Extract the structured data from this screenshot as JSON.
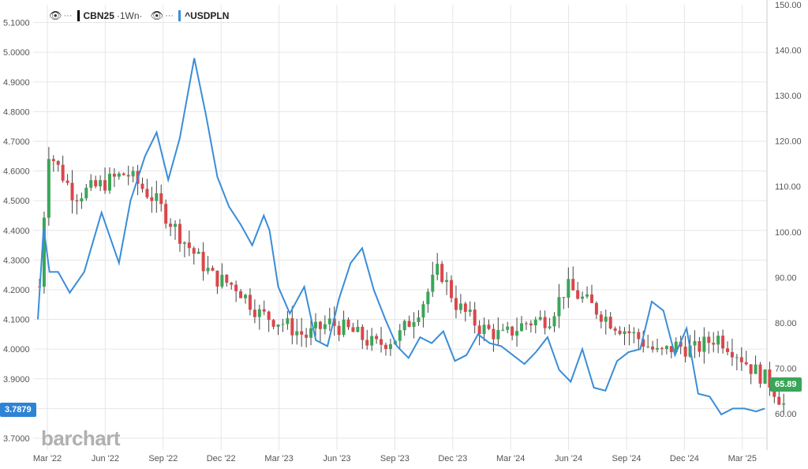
{
  "legend": {
    "primary_symbol": "CBN25",
    "primary_interval": "·1Wn·",
    "secondary_symbol": "^USDPLN",
    "more_label": "···"
  },
  "watermark": "barchart",
  "colors": {
    "up": "#3aa657",
    "down": "#d9474b",
    "line": "#3a8dd8",
    "left_tag": "#2d83d6",
    "right_tag": "#3aa657",
    "grid": "#e6e6e6"
  },
  "left_last_value": "3.7879",
  "right_last_value": "65.89",
  "chart_data": {
    "type": "line",
    "x_ticks": [
      "Mar '22",
      "Jun '22",
      "Sep '22",
      "Dec '22",
      "Mar '23",
      "Jun '23",
      "Sep '23",
      "Dec '23",
      "Mar '24",
      "Jun '24",
      "Sep '24",
      "Dec '24",
      "Mar '25"
    ],
    "left_axis": {
      "ticks": [
        "5.1000",
        "5.0000",
        "4.9000",
        "4.8000",
        "4.7000",
        "4.6000",
        "4.5000",
        "4.4000",
        "4.3000",
        "4.2000",
        "4.1000",
        "4.0000",
        "3.9000",
        "3.8000",
        "3.7000"
      ],
      "range": [
        3.66,
        5.16
      ]
    },
    "right_axis": {
      "ticks": [
        "150.00",
        "140.00",
        "130.00",
        "120.00",
        "110.00",
        "100.00",
        "90.00",
        "80.00",
        "70.00",
        "60.00"
      ],
      "range": [
        52,
        150
      ]
    },
    "series": [
      {
        "name": "^USDPLN",
        "axis": "left",
        "x": [
          "Mar '22",
          0.1,
          0.2,
          0.35,
          0.55,
          0.8,
          1.1,
          1.4,
          1.6,
          1.85,
          2.05,
          2.25,
          2.45,
          2.7,
          2.9,
          3.1,
          3.3,
          3.5,
          3.7,
          3.9,
          4.0,
          4.15,
          4.35,
          4.6,
          4.8,
          5.0,
          5.2,
          5.4,
          5.6,
          5.8,
          6.0,
          6.2,
          6.4,
          6.6,
          6.8,
          7.0,
          7.2,
          7.4,
          7.6,
          7.8,
          8.0,
          8.2,
          8.4,
          8.6,
          8.8,
          9.0,
          9.2,
          9.4,
          9.6,
          9.8,
          10.0,
          10.2,
          10.4,
          10.6,
          10.8,
          11.0,
          11.2,
          11.4,
          11.6,
          11.8,
          12.0,
          12.2,
          12.4,
          12.55
        ],
        "y": [
          4.1,
          4.41,
          4.26,
          4.26,
          4.19,
          4.26,
          4.46,
          4.29,
          4.5,
          4.65,
          4.73,
          4.57,
          4.71,
          4.98,
          4.79,
          4.58,
          4.48,
          4.42,
          4.35,
          4.45,
          4.4,
          4.21,
          4.12,
          4.21,
          4.03,
          4.01,
          4.17,
          4.29,
          4.34,
          4.2,
          4.1,
          4.01,
          3.97,
          4.04,
          4.02,
          4.06,
          3.96,
          3.98,
          4.05,
          4.02,
          4.01,
          3.98,
          3.95,
          3.99,
          4.04,
          3.93,
          3.89,
          4.0,
          3.87,
          3.86,
          3.96,
          3.99,
          4.0,
          4.16,
          4.13,
          3.98,
          4.07,
          3.85,
          3.84,
          3.78,
          3.8,
          3.8,
          3.79,
          3.8
        ],
        "note": "approximate trace"
      }
    ]
  }
}
